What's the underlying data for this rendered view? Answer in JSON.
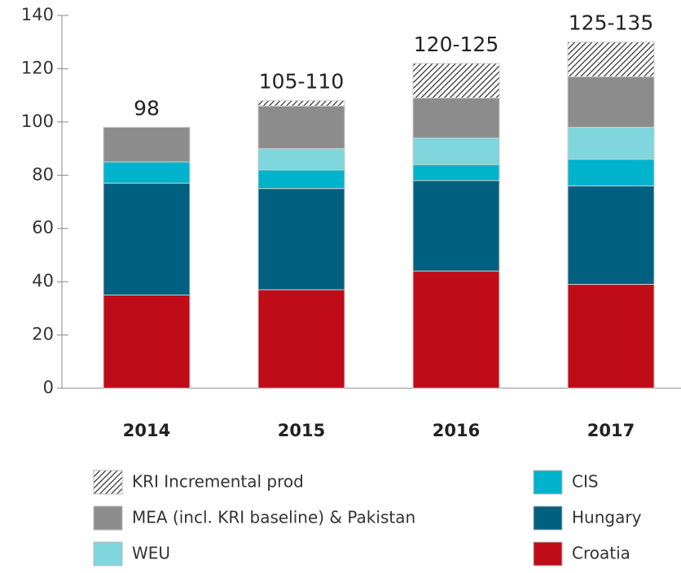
{
  "chart_data": {
    "type": "stacked_bar",
    "categories": [
      "2014",
      "2015",
      "2016",
      "2017"
    ],
    "series": [
      {
        "name": "Croatia",
        "color": "#c00c18",
        "values": [
          35,
          37,
          44,
          39
        ]
      },
      {
        "name": "Hungary",
        "color": "#006080",
        "values": [
          42,
          38,
          34,
          37
        ]
      },
      {
        "name": "CIS",
        "color": "#00b3cc",
        "values": [
          8,
          7,
          6,
          10
        ]
      },
      {
        "name": "WEU",
        "color": "#7fd6dc",
        "values": [
          0,
          8,
          10,
          12
        ]
      },
      {
        "name": "MEA (incl. KRI baseline) & Pakistan",
        "color": "#8c8c8c",
        "values": [
          13,
          16,
          15,
          19
        ]
      },
      {
        "name": "KRI Incremental prod",
        "color": "#333333",
        "pattern": "hatch",
        "values": [
          0,
          2,
          13,
          13
        ]
      }
    ],
    "total_labels": [
      "98",
      "105-110",
      "120-125",
      "125-135"
    ],
    "ylim": [
      0,
      140
    ],
    "yticks": [
      0,
      20,
      40,
      60,
      80,
      100,
      120,
      140
    ],
    "grid": false
  }
}
